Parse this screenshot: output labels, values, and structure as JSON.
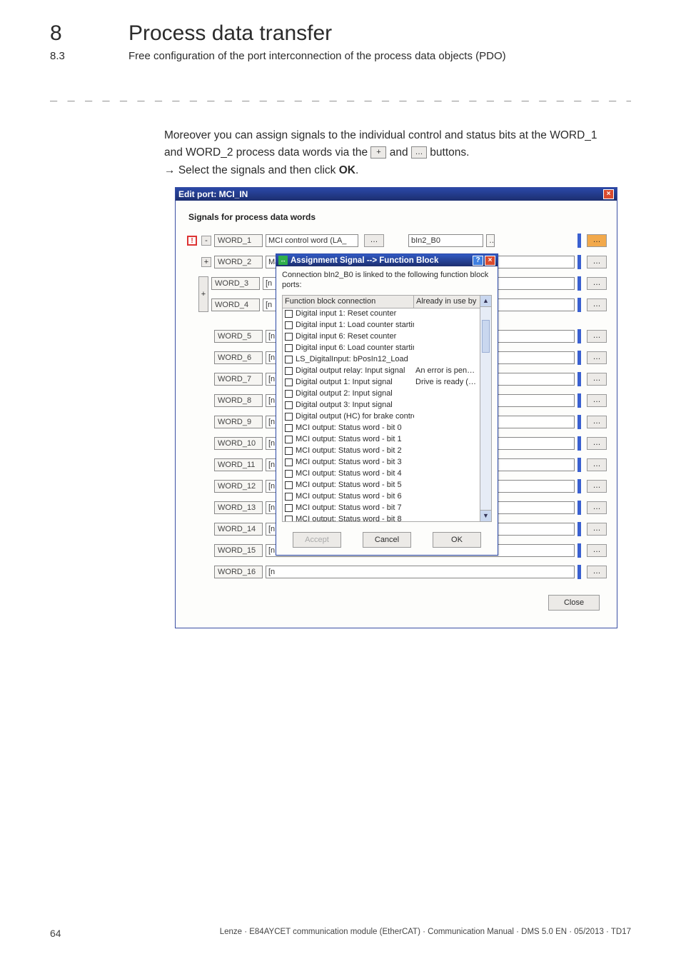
{
  "header": {
    "section_num": "8",
    "section_title": "Process data transfer",
    "sub_num": "8.3",
    "sub_title": "Free configuration of the port interconnection of the process data objects (PDO)"
  },
  "dash_line": "_ _ _ _ _ _ _ _ _ _ _ _ _ _ _ _ _ _ _ _ _ _ _ _ _ _ _ _ _ _ _ _ _ _ _ _ _ _ _ _ _ _ _ _ _ _ _ _ _ _ _ _ _ _ _ _ _ _ _ _ _ _ _ _",
  "body": {
    "line1a": "Moreover you can assign signals to the individual control and status bits at the WORD_1",
    "line1b": "and WORD_2 process data words via the ",
    "line1c": " and ",
    "line1d": " buttons.",
    "inline_btn_plus": "+",
    "inline_btn_ell": "…",
    "line2": "Select the signals and then click ",
    "line2_bold": "OK",
    "line2_end": "."
  },
  "window": {
    "title": "Edit port: MCI_IN",
    "signals_label": "Signals for process data words",
    "alert_glyph": "!",
    "minus_glyph": "-",
    "plus_glyph": "+",
    "word1": {
      "label": "WORD_1",
      "sig_wide": "MCI control word (LA_",
      "sig_ell": "…",
      "sig_mid": "bIn2_B0",
      "sig_trail": "…"
    },
    "word2": {
      "label": "WORD_2",
      "body": "Main speed setpoint (L"
    },
    "words_rest": [
      {
        "label": "WORD_3",
        "body": "[n"
      },
      {
        "label": "WORD_4",
        "body": "[n"
      },
      {
        "label": "WORD_5",
        "body": "[n"
      },
      {
        "label": "WORD_6",
        "body": "[n"
      },
      {
        "label": "WORD_7",
        "body": "[n"
      },
      {
        "label": "WORD_8",
        "body": "[n"
      },
      {
        "label": "WORD_9",
        "body": "[n"
      },
      {
        "label": "WORD_10",
        "body": "[n"
      },
      {
        "label": "WORD_11",
        "body": "[n"
      },
      {
        "label": "WORD_12",
        "body": "[n"
      },
      {
        "label": "WORD_13",
        "body": "[n"
      },
      {
        "label": "WORD_14",
        "body": "[n"
      },
      {
        "label": "WORD_15",
        "body": "[n"
      },
      {
        "label": "WORD_16",
        "body": "[n"
      }
    ],
    "ell": "…",
    "close_btn": "Close"
  },
  "popup": {
    "icon": "↔",
    "title": "Assignment Signal --> Function Block",
    "help": "?",
    "desc": "Connection bIn2_B0 is linked to the following function block ports:",
    "col1": "Function block connection",
    "col2": "Already in use by",
    "rows": [
      {
        "txt": "Digital input 1: Reset counter",
        "c2": ""
      },
      {
        "txt": "Digital input 1: Load counter startin…",
        "c2": ""
      },
      {
        "txt": "Digital input 6: Reset counter",
        "c2": ""
      },
      {
        "txt": "Digital input 6: Load counter startin…",
        "c2": ""
      },
      {
        "txt": "LS_DigitalInput: bPosIn12_Load",
        "c2": ""
      },
      {
        "txt": "Digital output relay: Input signal",
        "c2": "An error is pen…"
      },
      {
        "txt": "Digital output 1: Input signal",
        "c2": "Drive is ready (…"
      },
      {
        "txt": "Digital output 2: Input signal",
        "c2": ""
      },
      {
        "txt": "Digital output 3: Input signal",
        "c2": ""
      },
      {
        "txt": "Digital output (HC) for brake control:…",
        "c2": ""
      },
      {
        "txt": "MCI output: Status word - bit 0",
        "c2": ""
      },
      {
        "txt": "MCI output: Status word - bit 1",
        "c2": ""
      },
      {
        "txt": "MCI output: Status word - bit 2",
        "c2": ""
      },
      {
        "txt": "MCI output: Status word - bit 3",
        "c2": ""
      },
      {
        "txt": "MCI output: Status word - bit 4",
        "c2": ""
      },
      {
        "txt": "MCI output: Status word - bit 5",
        "c2": ""
      },
      {
        "txt": "MCI output: Status word - bit 6",
        "c2": ""
      },
      {
        "txt": "MCI output: Status word - bit 7",
        "c2": ""
      },
      {
        "txt": "MCI output: Status word - bit 8",
        "c2": ""
      }
    ],
    "up": "▲",
    "down": "▼",
    "accept": "Accept",
    "cancel": "Cancel",
    "ok": "OK"
  },
  "footer": {
    "page": "64",
    "text": "Lenze · E84AYCET communication module (EtherCAT) · Communication Manual · DMS 5.0 EN · 05/2013 · TD17"
  }
}
